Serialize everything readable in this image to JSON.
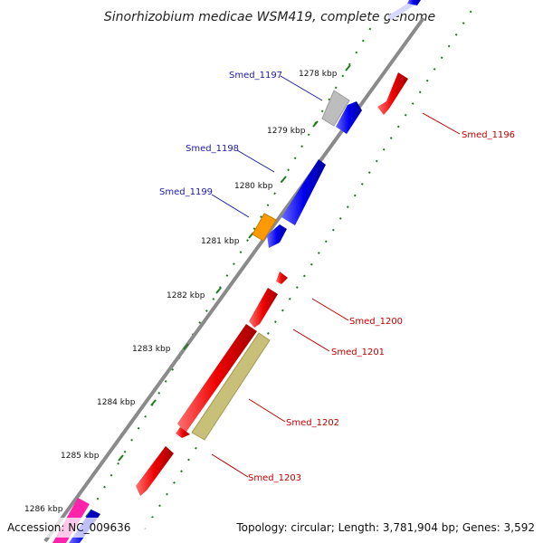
{
  "title": "Sinorhizobium medicae WSM419, complete genome",
  "footer": {
    "accession": "Accession: NC_009636",
    "summary": "Topology: circular; Length: 3,781,904 bp; Genes: 3,592"
  },
  "ticks": [
    "1278 kbp",
    "1279 kbp",
    "1280 kbp",
    "1281 kbp",
    "1282 kbp",
    "1283 kbp",
    "1284 kbp",
    "1285 kbp",
    "1286 kbp"
  ],
  "labels": {
    "smed_1196": "Smed_1196",
    "smed_1197": "Smed_1197",
    "smed_1198": "Smed_1198",
    "smed_1199": "Smed_1199",
    "smed_1200": "Smed_1200",
    "smed_1201": "Smed_1201",
    "smed_1202": "Smed_1202",
    "smed_1203": "Smed_1203"
  },
  "colors": {
    "backbone": "#8a8a8a",
    "forward_gene": "#0000ee",
    "reverse_gene": "#ee0000",
    "gray_gene": "#bdbdbd",
    "orange_gene": "#ff9900",
    "olive_gene": "#c8bf78",
    "magenta_gene": "#ff22aa",
    "dots": "#1d7a1d"
  }
}
